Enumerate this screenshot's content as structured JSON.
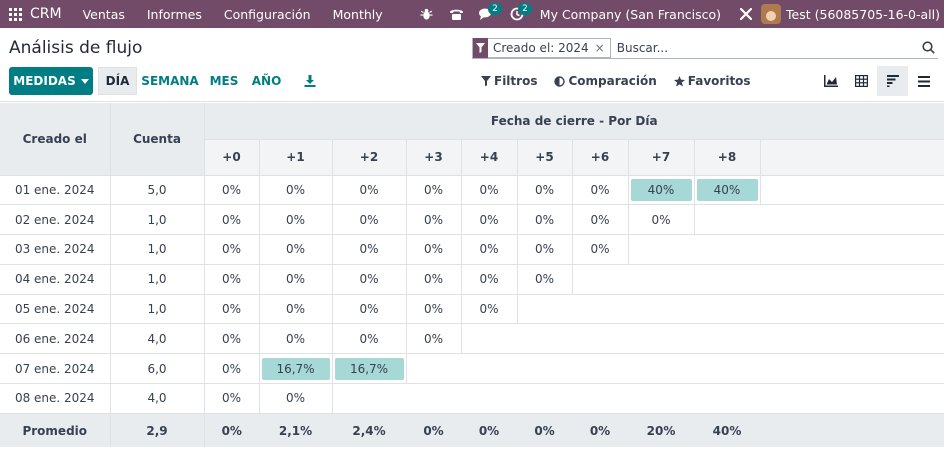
{
  "navbar": {
    "brand": "CRM",
    "menu": [
      "Ventas",
      "Informes",
      "Configuración",
      "Monthly"
    ],
    "messages_count": "2",
    "activities_count": "2",
    "company": "My Company (San Francisco)",
    "user": "Test (56085705-16-0-all)"
  },
  "control_panel": {
    "title": "Análisis de flujo",
    "search": {
      "facet_label": "Creado el: 2024",
      "facet_remove": "×",
      "placeholder": "Buscar..."
    },
    "measures_label": "MEDIDAS",
    "intervals": [
      "DÍA",
      "SEMANA",
      "MES",
      "AÑO"
    ],
    "active_interval": "DÍA",
    "filters_label": "Filtros",
    "comparison_label": "Comparación",
    "favorites_label": "Favoritos",
    "views": [
      "graph-icon",
      "table-icon",
      "cohort-icon",
      "list-icon"
    ],
    "active_view": "cohort-icon"
  },
  "cohort": {
    "col_created": "Creado el",
    "col_count": "Cuenta",
    "group_header": "Fecha de cierre - Por Día",
    "intervals": [
      "+0",
      "+1",
      "+2",
      "+3",
      "+4",
      "+5",
      "+6",
      "+7",
      "+8"
    ],
    "rows": [
      {
        "date": "01 ene. 2024",
        "count": "5,0",
        "values": [
          "0%",
          "0%",
          "0%",
          "0%",
          "0%",
          "0%",
          "0%",
          "40%",
          "40%"
        ]
      },
      {
        "date": "02 ene. 2024",
        "count": "1,0",
        "values": [
          "0%",
          "0%",
          "0%",
          "0%",
          "0%",
          "0%",
          "0%",
          "0%"
        ]
      },
      {
        "date": "03 ene. 2024",
        "count": "1,0",
        "values": [
          "0%",
          "0%",
          "0%",
          "0%",
          "0%",
          "0%",
          "0%"
        ]
      },
      {
        "date": "04 ene. 2024",
        "count": "1,0",
        "values": [
          "0%",
          "0%",
          "0%",
          "0%",
          "0%",
          "0%"
        ]
      },
      {
        "date": "05 ene. 2024",
        "count": "1,0",
        "values": [
          "0%",
          "0%",
          "0%",
          "0%",
          "0%"
        ]
      },
      {
        "date": "06 ene. 2024",
        "count": "4,0",
        "values": [
          "0%",
          "0%",
          "0%",
          "0%"
        ]
      },
      {
        "date": "07 ene. 2024",
        "count": "6,0",
        "values": [
          "0%",
          "16,7%",
          "16,7%"
        ]
      },
      {
        "date": "08 ene. 2024",
        "count": "4,0",
        "values": [
          "0%",
          "0%"
        ]
      }
    ],
    "footer": {
      "label": "Promedio",
      "count": "2,9",
      "values": [
        "0%",
        "2,1%",
        "2,4%",
        "0%",
        "0%",
        "0%",
        "0%",
        "20%",
        "40%"
      ]
    },
    "highlight_color": "#a6d8d6"
  },
  "colors": {
    "navbar": "#714b67",
    "primary": "#017e84",
    "header_bg": "#e9ecef"
  }
}
